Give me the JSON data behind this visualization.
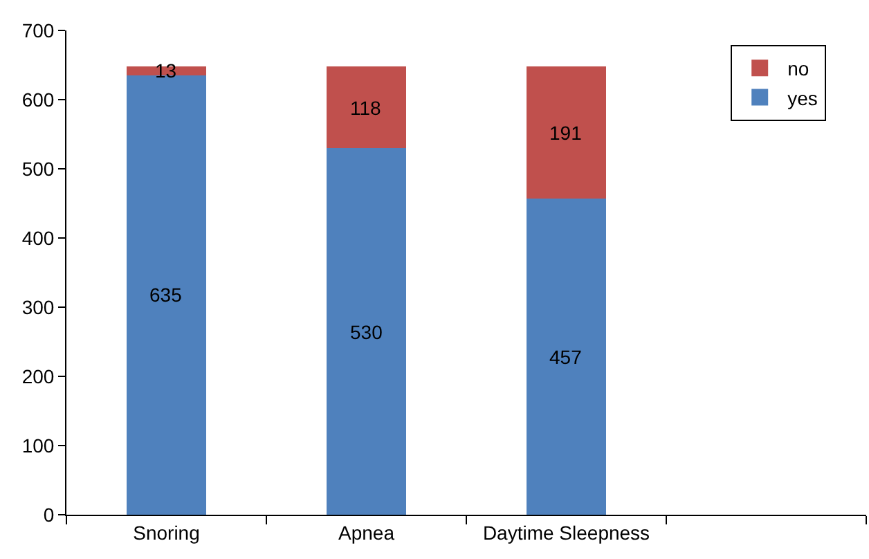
{
  "chart_data": {
    "type": "bar",
    "stacked": true,
    "categories": [
      "Snoring",
      "Apnea",
      "Daytime Sleepness",
      null
    ],
    "series": [
      {
        "name": "yes",
        "color": "#4f81bd",
        "values": [
          635,
          530,
          457,
          null
        ]
      },
      {
        "name": "no",
        "color": "#c0504d",
        "values": [
          13,
          118,
          191,
          null
        ]
      }
    ],
    "ylim": [
      0,
      700
    ],
    "yticks": [
      0,
      100,
      200,
      300,
      400,
      500,
      600,
      700
    ],
    "grid": false,
    "legend": "top right",
    "data_labels": true
  }
}
